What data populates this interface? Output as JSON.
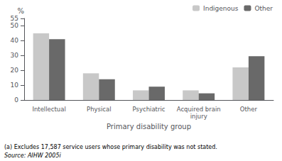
{
  "chart_data": {
    "type": "bar",
    "categories": [
      "Intellectual",
      "Physical",
      "Psychiatric",
      "Acquired brain\ninjury",
      "Other"
    ],
    "series": [
      {
        "name": "Indigenous",
        "color": "#c8c8c8",
        "values": [
          45,
          18,
          6.5,
          6.5,
          22
        ]
      },
      {
        "name": "Other",
        "color": "#696969",
        "values": [
          41,
          14,
          9,
          4.5,
          29.5
        ]
      }
    ],
    "xlabel": "Primary disability group",
    "ylabel": "%",
    "ylim": [
      0,
      55
    ],
    "yticks": [
      0,
      10,
      20,
      30,
      40,
      50
    ],
    "grid": false,
    "legend": "upper right",
    "annotations": [
      "(a) Excludes 17,587 service users whose primary disability was not stated.",
      "Source: AIHW 2005i"
    ]
  }
}
